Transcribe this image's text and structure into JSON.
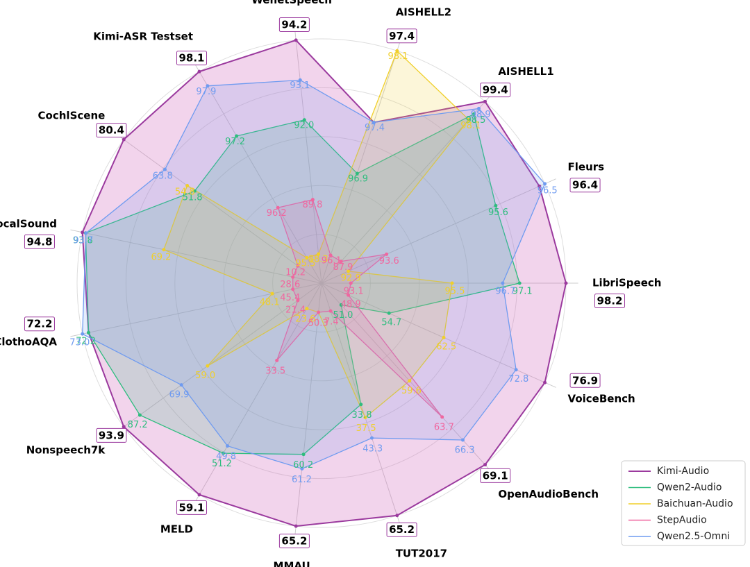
{
  "chart_data": {
    "type": "radar",
    "categories": [
      "LibriSpeech",
      "Fleurs",
      "AISHELL1",
      "AISHELL2",
      "WenetSpeech",
      "Kimi-ASR Testset",
      "CochlScene",
      "VocalSound",
      "ClothoAQA",
      "Nonspeech7k",
      "MELD",
      "MMAU",
      "TUT2017",
      "OpenAudioBench",
      "VoiceBench"
    ],
    "series": [
      {
        "name": "Kimi-Audio",
        "color": "#9b3a9e",
        "fill": "#d46fbf",
        "values": [
          98.2,
          96.4,
          99.4,
          97.4,
          94.2,
          98.1,
          80.4,
          94.8,
          72.2,
          93.9,
          59.1,
          65.2,
          65.2,
          69.1,
          76.9
        ],
        "value_labels": [
          "98.2",
          "96.4",
          "99.4",
          "97.4",
          "94.2",
          "98.1",
          "80.4",
          "94.8",
          "72.2",
          "93.9",
          "59.1",
          "65.2",
          "65.2",
          "69.1",
          "76.9"
        ]
      },
      {
        "name": "Qwen2-Audio",
        "color": "#2ebd7e",
        "fill": "#2ebd7e",
        "values": [
          97.1,
          95.6,
          98.5,
          96.9,
          92.0,
          97.2,
          51.8,
          93.8,
          72.2,
          87.2,
          51.2,
          60.2,
          33.8,
          51.0,
          54.7
        ],
        "value_labels": [
          "97.1",
          "95.6",
          "98.5",
          "96.9",
          "92.0",
          "97.2",
          "51.8",
          "93.8",
          "72.2",
          "87.2",
          "51.2",
          "60.2",
          "33.8",
          "51.0",
          "54.7"
        ]
      },
      {
        "name": "Baichuan-Audio",
        "color": "#f0cf2a",
        "fill": "#f0cf2a",
        "values": [
          95.5,
          92.9,
          98.1,
          98.1,
          88.3,
          95.5,
          54.8,
          69.2,
          48.1,
          59.0,
          23.6,
          50.3,
          37.5,
          59.6,
          62.5
        ],
        "value_labels": [
          "95.5",
          "92.9",
          "98.1",
          "98.1",
          "88.3",
          "95.5",
          "54.8",
          "69.2",
          "48.1",
          "59.0",
          "23.6",
          "50.3",
          "37.5",
          "59.6",
          "62.5"
        ]
      },
      {
        "name": "StepAudio",
        "color": "#f0679f",
        "fill": "#f0679f",
        "values": [
          93.1,
          93.6,
          87.9,
          96.1,
          89.8,
          96.2,
          10.2,
          28.6,
          45.4,
          21.4,
          33.5,
          50.3,
          7.4,
          63.7,
          48.9
        ],
        "value_labels": [
          "93.1",
          "93.6",
          "87.9",
          "96.1",
          "89.8",
          "96.2",
          "10.2",
          "28.6",
          "45.4",
          "21.4",
          "33.5",
          "50.3",
          "7.4",
          "63.7",
          "48.9"
        ]
      },
      {
        "name": "Qwen2.5-Omni",
        "color": "#6f9bf0",
        "fill": "#6f9bf0",
        "values": [
          96.7,
          96.5,
          98.9,
          97.4,
          93.1,
          97.9,
          63.8,
          93.7,
          73.0,
          69.9,
          49.8,
          61.2,
          43.3,
          66.3,
          72.8
        ],
        "value_labels": [
          "96.7",
          "96.5",
          "98.9",
          "97.4",
          "93.1",
          "97.9",
          "63.8",
          "93.7",
          "73.0",
          "69.9",
          "49.8",
          "61.2",
          "43.3",
          "66.3",
          "72.8"
        ]
      }
    ],
    "legend": "lower right"
  }
}
